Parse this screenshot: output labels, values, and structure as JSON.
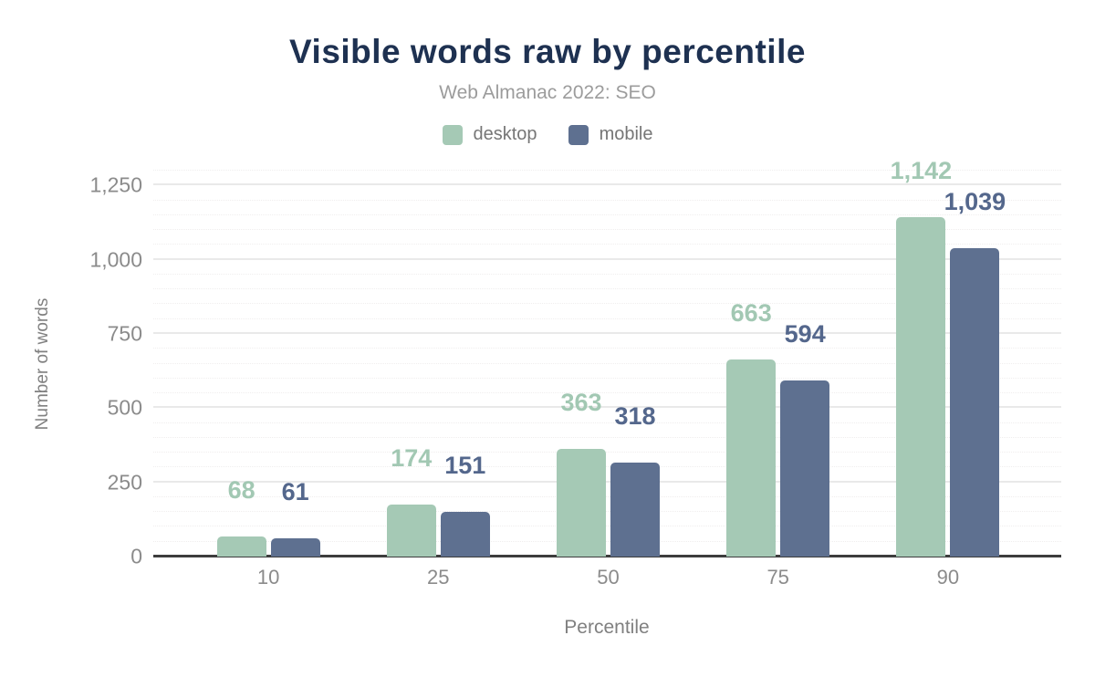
{
  "title": "Visible words raw by percentile",
  "subtitle": "Web Almanac 2022: SEO",
  "legend": {
    "desktop_label": "desktop",
    "mobile_label": "mobile"
  },
  "colors": {
    "title": "#1e3151",
    "subtitle": "#9c9c9c",
    "desktop_bar": "#a5c9b5",
    "desktop_label": "#a2c8b3",
    "mobile_bar": "#5e7090",
    "mobile_label": "#54678c",
    "axis_line": "#3d3d3d",
    "tick_text": "#8b8b8b"
  },
  "chart_data": {
    "type": "bar",
    "title": "Visible words raw by percentile",
    "subtitle": "Web Almanac 2022: SEO",
    "categories": [
      "10",
      "25",
      "50",
      "75",
      "90"
    ],
    "series": [
      {
        "name": "desktop",
        "color": "#a5c9b5",
        "label_color": "#a2c8b3",
        "values": [
          68,
          174,
          363,
          663,
          1142
        ],
        "labels": [
          "68",
          "174",
          "363",
          "663",
          "1,142"
        ]
      },
      {
        "name": "mobile",
        "color": "#5e7090",
        "label_color": "#54678c",
        "values": [
          61,
          151,
          318,
          594,
          1039
        ],
        "labels": [
          "61",
          "151",
          "318",
          "594",
          "1,039"
        ]
      }
    ],
    "xlabel": "Percentile",
    "ylabel": "Number of words",
    "ylim": [
      0,
      1300
    ],
    "yticks": [
      {
        "value": 0,
        "label": "0"
      },
      {
        "value": 250,
        "label": "250"
      },
      {
        "value": 500,
        "label": "500"
      },
      {
        "value": 750,
        "label": "750"
      },
      {
        "value": 1000,
        "label": "1,000"
      },
      {
        "value": 1250,
        "label": "1,250"
      }
    ],
    "grid": {
      "major_step": 250,
      "minor_step": 50
    },
    "legend_position": "top"
  }
}
